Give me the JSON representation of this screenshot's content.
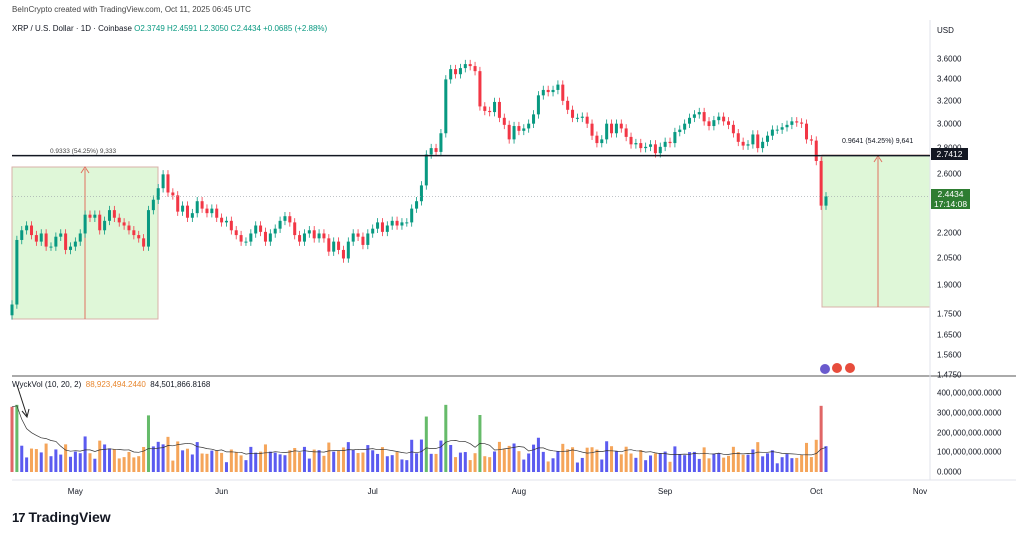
{
  "header": {
    "published": "BeInCrypto created with TradingView.com, Oct 11, 2025 06:45 UTC",
    "symbol": "XRP / U.S. Dollar · 1D · Coinbase",
    "ohlc": "O2.3749 H2.4591 L2.3050 C2.4434 +0.0685 (+2.88%)",
    "currency": "USD"
  },
  "colors": {
    "up": "#089981",
    "down": "#f23645",
    "vol_up": "#5b5bf0",
    "vol_down": "#f5a55a",
    "vol_spike": "#e06666",
    "vol_green": "#66bb6a",
    "zone_fill": "#dff7d8",
    "level": "#131722"
  },
  "annotations": {
    "left_measure": "0.9333 (54.25%) 9,333",
    "right_measure": "0.9641 (54.25%) 9,641",
    "level_tag": "2.7412",
    "price_tag": "2.4434",
    "countdown": "17:14:08"
  },
  "volume_panel": {
    "indicator": "WyckVol (10, 20, 2)",
    "value1": "88,923,494.2440",
    "value2": "84,501,866.8168",
    "ticks": [
      "400,000,000.0000",
      "300,000,000.0000",
      "200,000,000.0000",
      "100,000,000.0000",
      "0.0000"
    ]
  },
  "icon_names": [
    "event-icon",
    "flag-icon-1",
    "flag-icon-2"
  ],
  "brand": {
    "logo_text": "TradingView"
  },
  "chart_data": {
    "type": "candlestick",
    "title": "XRP / U.S. Dollar · 1D · Coinbase",
    "ylabel": "USD",
    "y_scale": "log",
    "ylim": [
      1.475,
      3.8
    ],
    "y_ticks": [
      "3.6000",
      "3.4000",
      "3.2000",
      "3.0000",
      "2.8000",
      "2.6000",
      "2.4000",
      "2.2000",
      "2.0500",
      "1.9000",
      "1.7500",
      "1.6500",
      "1.5600",
      "1.4750"
    ],
    "x_ticks": [
      "May",
      "Jun",
      "Jul",
      "Aug",
      "Sep",
      "Oct",
      "Nov"
    ],
    "horizontal_level": 2.7412,
    "last_price": 2.4434,
    "closes": [
      1.8,
      2.16,
      2.22,
      2.25,
      2.19,
      2.15,
      2.2,
      2.12,
      2.12,
      2.18,
      2.2,
      2.1,
      2.12,
      2.15,
      2.2,
      2.32,
      2.3,
      2.32,
      2.22,
      2.28,
      2.35,
      2.3,
      2.27,
      2.25,
      2.22,
      2.19,
      2.17,
      2.12,
      2.35,
      2.42,
      2.5,
      2.6,
      2.47,
      2.45,
      2.34,
      2.38,
      2.3,
      2.33,
      2.41,
      2.36,
      2.33,
      2.36,
      2.3,
      2.27,
      2.28,
      2.22,
      2.19,
      2.15,
      2.15,
      2.2,
      2.25,
      2.21,
      2.15,
      2.2,
      2.23,
      2.28,
      2.31,
      2.27,
      2.19,
      2.15,
      2.2,
      2.22,
      2.17,
      2.2,
      2.17,
      2.09,
      2.15,
      2.1,
      2.05,
      2.15,
      2.2,
      2.18,
      2.13,
      2.2,
      2.23,
      2.27,
      2.21,
      2.25,
      2.28,
      2.25,
      2.27,
      2.27,
      2.36,
      2.41,
      2.52,
      2.75,
      2.8,
      2.77,
      2.92,
      3.4,
      3.5,
      3.45,
      3.51,
      3.55,
      3.53,
      3.48,
      3.15,
      3.11,
      3.1,
      3.19,
      3.05,
      2.99,
      2.87,
      2.98,
      2.94,
      2.96,
      3.0,
      3.08,
      3.25,
      3.3,
      3.28,
      3.3,
      3.35,
      3.2,
      3.12,
      3.05,
      3.05,
      3.06,
      3.0,
      2.9,
      2.84,
      2.87,
      3.0,
      2.92,
      3.0,
      2.96,
      2.89,
      2.83,
      2.84,
      2.8,
      2.81,
      2.83,
      2.76,
      2.81,
      2.85,
      2.84,
      2.93,
      2.95,
      3.0,
      3.05,
      3.08,
      3.1,
      3.02,
      2.98,
      3.03,
      3.06,
      3.02,
      2.99,
      2.92,
      2.85,
      2.82,
      2.83,
      2.91,
      2.8,
      2.85,
      2.9,
      2.95,
      2.95,
      2.97,
      2.99,
      3.02,
      3.01,
      3.0,
      2.87,
      2.86,
      2.7,
      2.38,
      2.4434
    ]
  }
}
